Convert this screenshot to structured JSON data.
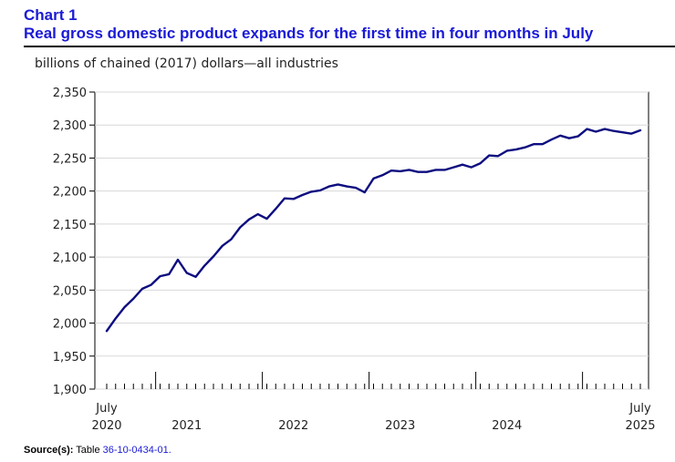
{
  "header": {
    "chart_number": "Chart 1",
    "title": "Real gross domestic product expands for the first time in four months in July",
    "units": "billions of chained (2017) dollars—all industries"
  },
  "source": {
    "label": "Source(s):",
    "text": "Table",
    "link": "36-10-0434-01."
  },
  "colors": {
    "title": "#1a1ad6",
    "series_line": "#0d0d80",
    "axis": "#000000"
  },
  "chart_data": {
    "type": "line",
    "title": "Real gross domestic product expands for the first time in four months in July",
    "ylabel": "billions of chained (2017) dollars—all industries",
    "xlabel": "",
    "ylim": [
      1900,
      2350
    ],
    "yticks": [
      1900,
      1950,
      2000,
      2050,
      2100,
      2150,
      2200,
      2250,
      2300,
      2350
    ],
    "ytick_labels": [
      "1,900",
      "1,950",
      "2,000",
      "2,050",
      "2,100",
      "2,150",
      "2,200",
      "2,250",
      "2,300",
      "2,350"
    ],
    "x_range": [
      "2020-07",
      "2025-07"
    ],
    "x_labels": [
      {
        "month_index": 0,
        "line1": "July",
        "line2": "2020"
      },
      {
        "month_index": 9,
        "line1": "",
        "line2": "2021"
      },
      {
        "month_index": 21,
        "line1": "",
        "line2": "2022"
      },
      {
        "month_index": 33,
        "line1": "",
        "line2": "2023"
      },
      {
        "month_index": 45,
        "line1": "",
        "line2": "2024"
      },
      {
        "month_index": 60,
        "line1": "July",
        "line2": "2025"
      }
    ],
    "year_boundaries": [
      5.5,
      17.5,
      29.5,
      41.5,
      53.5
    ],
    "series": [
      {
        "name": "Real GDP, all industries",
        "start": "2020-07",
        "values": [
          1988,
          2007,
          2024,
          2037,
          2052,
          2058,
          2071,
          2074,
          2096,
          2076,
          2070,
          2087,
          2101,
          2117,
          2127,
          2145,
          2157,
          2165,
          2158,
          2173,
          2189,
          2188,
          2194,
          2199,
          2201,
          2207,
          2210,
          2207,
          2205,
          2198,
          2219,
          2224,
          2231,
          2230,
          2232,
          2229,
          2229,
          2232,
          2232,
          2236,
          2240,
          2236,
          2242,
          2254,
          2253,
          2261,
          2263,
          2266,
          2271,
          2271,
          2278,
          2284,
          2280,
          2283,
          2294,
          2290,
          2294,
          2291,
          2289,
          2287,
          2292
        ]
      }
    ]
  }
}
